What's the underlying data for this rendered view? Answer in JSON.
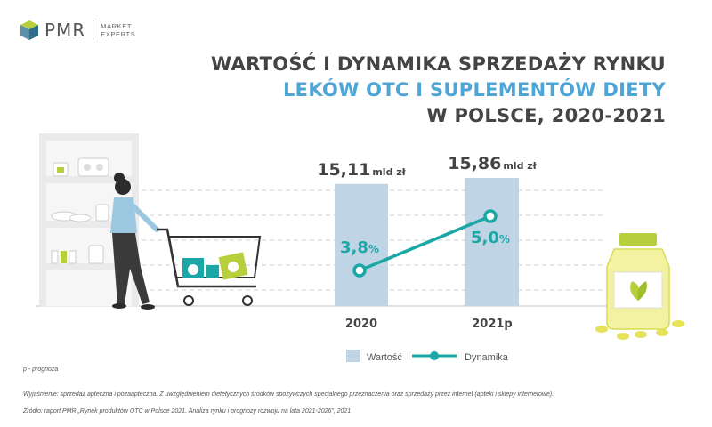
{
  "brand": {
    "name": "PMR",
    "sub_line1": "MARKET",
    "sub_line2": "EXPERTS"
  },
  "title": {
    "line1": "WARTOŚĆ I DYNAMIKA SPRZEDAŻY RYNKU",
    "line2": "LEKÓW OTC I SUPLEMENTÓW DIETY",
    "line3": "W POLSCE, 2020-2021"
  },
  "colors": {
    "bar": "#bfd5e5",
    "line": "#1aa7a6",
    "title_accent": "#4da6d6",
    "text": "#444444"
  },
  "chart_data": {
    "type": "bar+line",
    "categories": [
      "2020",
      "2021p"
    ],
    "series": [
      {
        "name": "Wartość",
        "type": "bar",
        "values": [
          15.11,
          15.86
        ],
        "labels": [
          "15,11",
          "15,86"
        ],
        "unit": "mld zł"
      },
      {
        "name": "Dynamika",
        "type": "line",
        "values": [
          3.8,
          5.0
        ],
        "labels": [
          "3,8",
          "5,0"
        ],
        "unit": "%"
      }
    ],
    "legend_position": "bottom",
    "grid": true
  },
  "footnotes": {
    "forecast": "p - prognoza",
    "explanation": "Wyjaśnienie: sprzedaż apteczna i pozaapteczna. Z uwzględnieniem dietetycznych środków spożywczych specjalnego przeznaczenia oraz sprzedaży przez internet (apteki i sklepy internetowe).",
    "source": "Źródło: raport PMR „Rynek produktów OTC w Polsce 2021. Analiza rynku i prognozy rozwoju na lata 2021-2026”, 2021"
  }
}
